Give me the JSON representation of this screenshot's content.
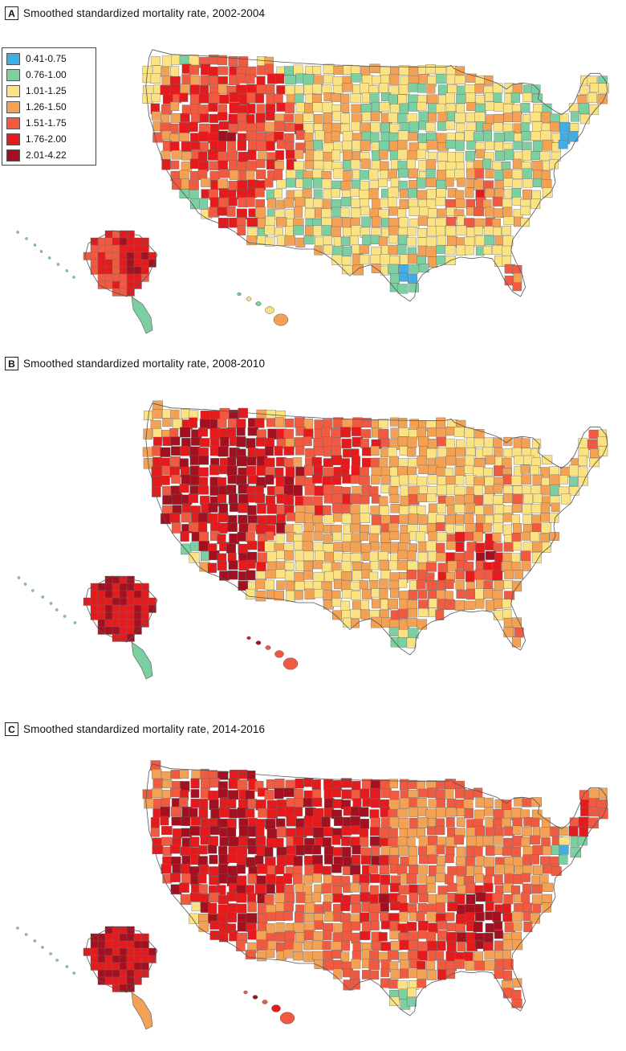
{
  "figure": {
    "panels": [
      {
        "letter": "A",
        "title": "Smoothed standardized mortality rate, 2002-2004"
      },
      {
        "letter": "B",
        "title": "Smoothed standardized mortality rate, 2008-2010"
      },
      {
        "letter": "C",
        "title": "Smoothed standardized mortality rate, 2014-2016"
      }
    ],
    "legend": {
      "classes": [
        {
          "label": "0.41-0.75",
          "color": "#41aee3"
        },
        {
          "label": "0.76-1.00",
          "color": "#7bcfa0"
        },
        {
          "label": "1.01-1.25",
          "color": "#fbe283"
        },
        {
          "label": "1.26-1.50",
          "color": "#f3a155"
        },
        {
          "label": "1.51-1.75",
          "color": "#f05a40"
        },
        {
          "label": "1.76-2.00",
          "color": "#e41a1c"
        },
        {
          "label": "2.01-4.22",
          "color": "#a3101f"
        }
      ]
    }
  }
}
